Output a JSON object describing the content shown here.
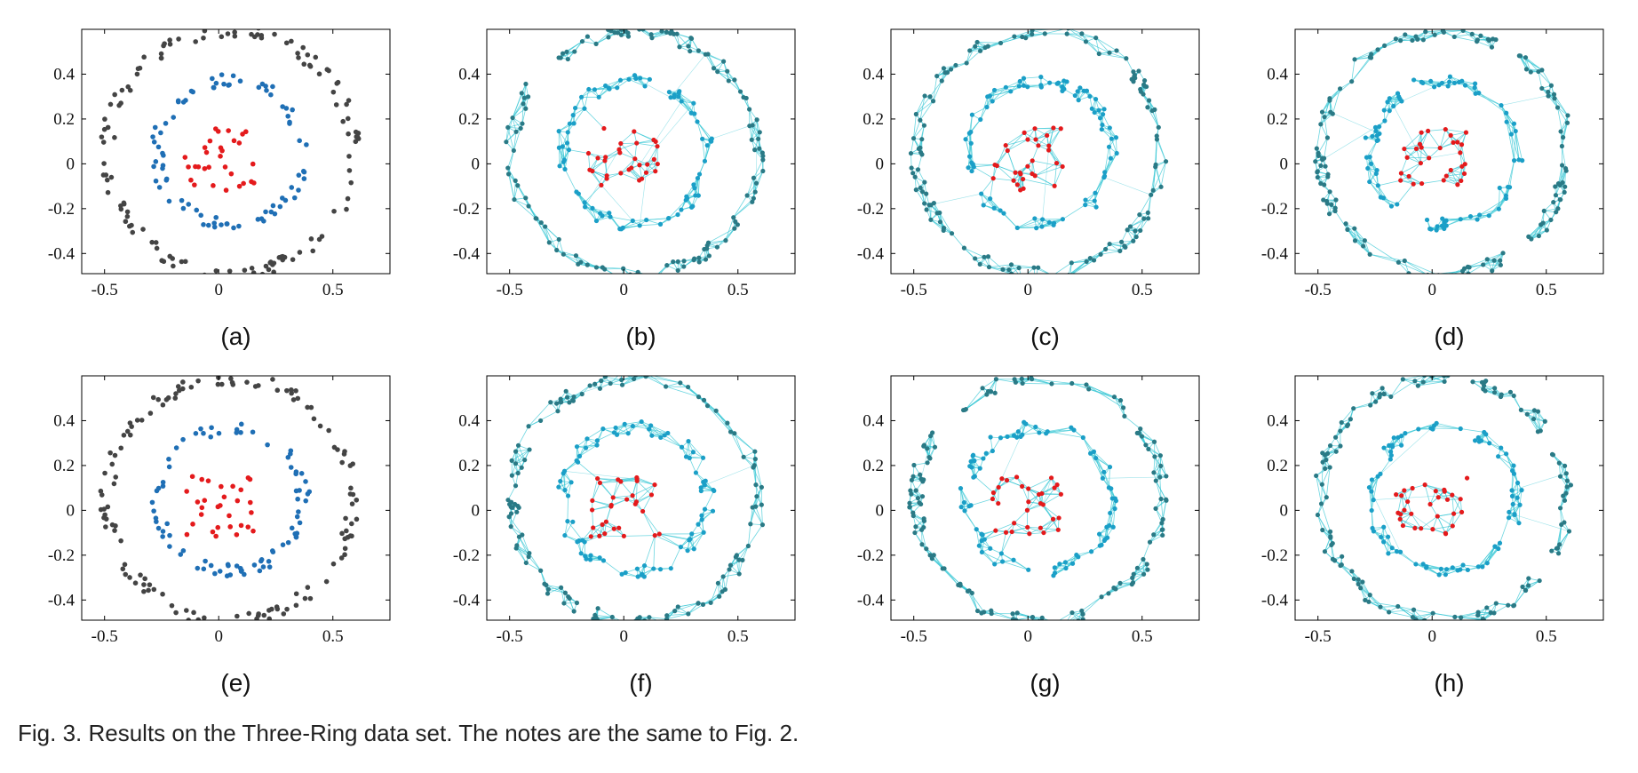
{
  "caption": "Fig. 3. Results on the Three-Ring data set. The notes are the same to Fig. 2.",
  "colors": {
    "inner": "#e41a1c",
    "middle": "#1f6fb5",
    "outer": "#444444",
    "edge": "#3cc8d6",
    "node_fill": "#2aa9b8"
  },
  "chart_data": [
    {
      "type": "scatter",
      "label": "(a)",
      "xlim": [
        -0.6,
        0.75
      ],
      "ylim": [
        -0.49,
        0.6
      ],
      "xticks": [
        "-0.5",
        "0",
        "0.5"
      ],
      "yticks": [
        "0.4",
        "0.2",
        "0",
        "-0.2",
        "-0.4"
      ],
      "series": [
        {
          "ring": "inner",
          "radius": 0.12,
          "count": 30
        },
        {
          "ring": "middle",
          "radius": 0.32,
          "count": 80
        },
        {
          "ring": "outer",
          "radius": 0.54,
          "count": 130
        }
      ]
    },
    {
      "type": "graph",
      "label": "(b)",
      "xlim": [
        -0.6,
        0.75
      ],
      "ylim": [
        -0.49,
        0.6
      ],
      "xticks": [
        "-0.5",
        "0",
        "0.5"
      ],
      "yticks": [
        "0.4",
        "0.2",
        "0",
        "-0.2",
        "-0.4"
      ]
    },
    {
      "type": "graph",
      "label": "(c)",
      "xlim": [
        -0.6,
        0.75
      ],
      "ylim": [
        -0.49,
        0.6
      ],
      "xticks": [
        "-0.5",
        "0",
        "0.5"
      ],
      "yticks": [
        "0.4",
        "0.2",
        "0",
        "-0.2",
        "-0.4"
      ]
    },
    {
      "type": "graph",
      "label": "(d)",
      "xlim": [
        -0.6,
        0.75
      ],
      "ylim": [
        -0.49,
        0.6
      ],
      "xticks": [
        "-0.5",
        "0",
        "0.5"
      ],
      "yticks": [
        "0.4",
        "0.2",
        "0",
        "-0.2",
        "-0.4"
      ]
    },
    {
      "type": "scatter",
      "label": "(e)",
      "xlim": [
        -0.6,
        0.75
      ],
      "ylim": [
        -0.49,
        0.6
      ],
      "xticks": [
        "-0.5",
        "0",
        "0.5"
      ],
      "yticks": [
        "0.4",
        "0.2",
        "0",
        "-0.2",
        "-0.4"
      ],
      "series": [
        {
          "ring": "inner",
          "radius": 0.12,
          "count": 30
        },
        {
          "ring": "middle",
          "radius": 0.32,
          "count": 80
        },
        {
          "ring": "outer",
          "radius": 0.54,
          "count": 130
        }
      ]
    },
    {
      "type": "graph",
      "label": "(f)",
      "xlim": [
        -0.6,
        0.75
      ],
      "ylim": [
        -0.49,
        0.6
      ],
      "xticks": [
        "-0.5",
        "0",
        "0.5"
      ],
      "yticks": [
        "0.4",
        "0.2",
        "0",
        "-0.2",
        "-0.4"
      ]
    },
    {
      "type": "graph",
      "label": "(g)",
      "xlim": [
        -0.6,
        0.75
      ],
      "ylim": [
        -0.49,
        0.6
      ],
      "xticks": [
        "-0.5",
        "0",
        "0.5"
      ],
      "yticks": [
        "0.4",
        "0.2",
        "0",
        "-0.2",
        "-0.4"
      ]
    },
    {
      "type": "graph",
      "label": "(h)",
      "xlim": [
        -0.6,
        0.75
      ],
      "ylim": [
        -0.49,
        0.6
      ],
      "xticks": [
        "-0.5",
        "0",
        "0.5"
      ],
      "yticks": [
        "0.4",
        "0.2",
        "0",
        "-0.2",
        "-0.4"
      ]
    }
  ]
}
